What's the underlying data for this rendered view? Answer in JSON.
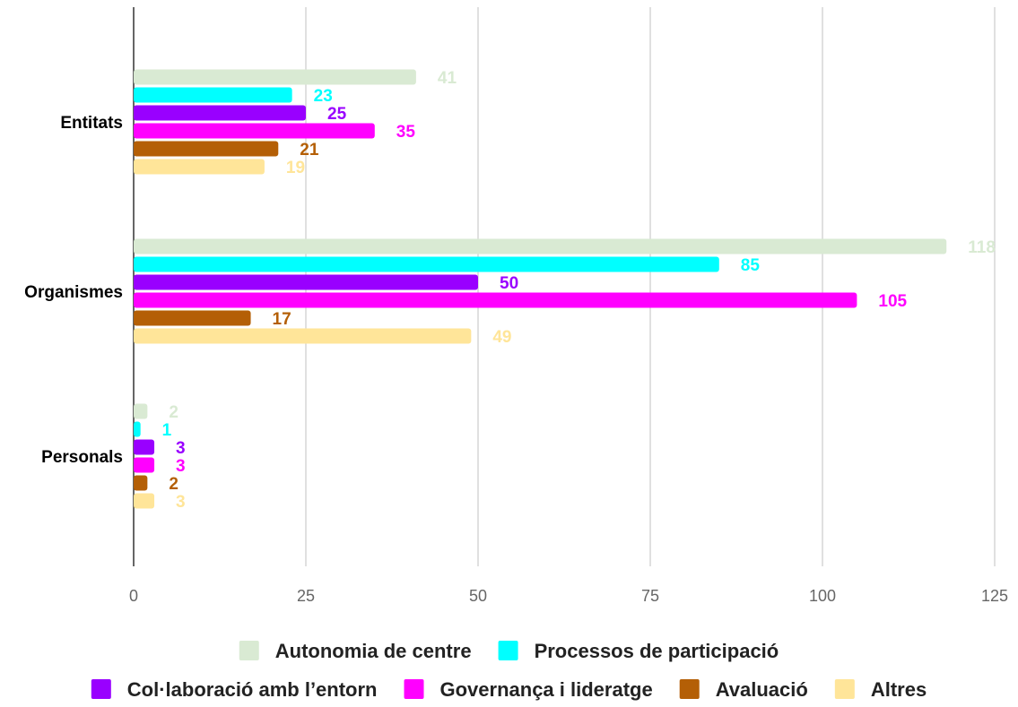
{
  "chart_data": {
    "type": "bar",
    "orientation": "horizontal",
    "title": "",
    "xlabel": "",
    "ylabel": "",
    "categories": [
      "Entitats",
      "Organismes",
      "Personals"
    ],
    "series": [
      {
        "name": "Autonomia de centre",
        "color": "#d9ead3",
        "values": [
          41,
          118,
          2
        ]
      },
      {
        "name": "Processos de participació",
        "color": "#00ffff",
        "values": [
          23,
          85,
          1
        ]
      },
      {
        "name": "Col·laboració amb l’entorn",
        "color": "#9900ff",
        "values": [
          25,
          50,
          3
        ]
      },
      {
        "name": "Governança i lideratge",
        "color": "#ff00ff",
        "values": [
          35,
          105,
          3
        ]
      },
      {
        "name": "Avaluació",
        "color": "#b45f06",
        "values": [
          21,
          17,
          2
        ]
      },
      {
        "name": "Altres",
        "color": "#ffe599",
        "values": [
          19,
          49,
          3
        ]
      }
    ],
    "xlim": [
      0,
      125
    ],
    "xticks": [
      "0",
      "25",
      "50",
      "75",
      "100",
      "125"
    ],
    "grid": true,
    "legend": "bottom",
    "data_labels": true
  }
}
